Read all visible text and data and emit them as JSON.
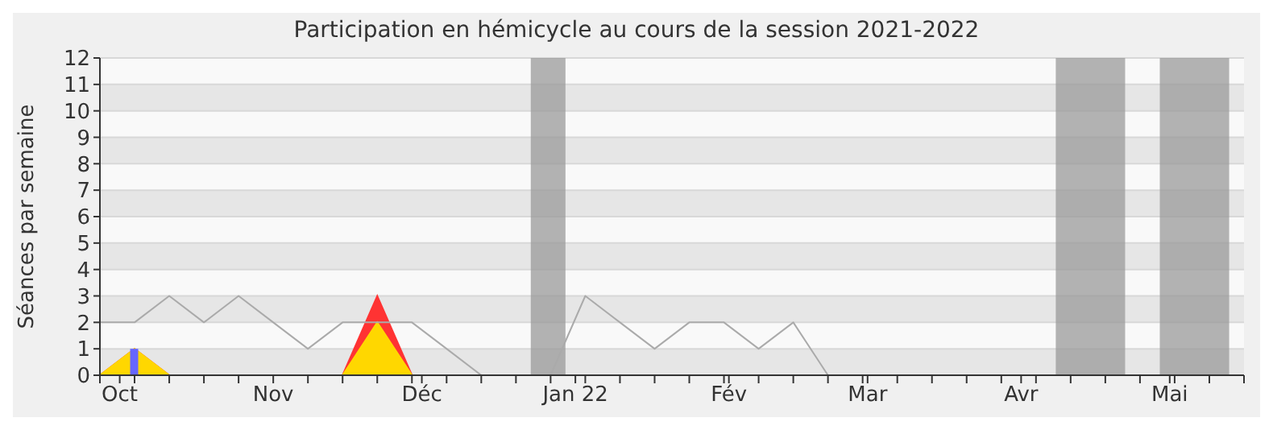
{
  "chart_data": {
    "type": "area",
    "title": "Participation en hémicycle au cours de la session 2021-2022",
    "ylabel": "Séances par semaine",
    "x": [
      "2021-09-27",
      "2021-10-04",
      "2021-10-11",
      "2021-10-18",
      "2021-10-25",
      "2021-11-01",
      "2021-11-08",
      "2021-11-15",
      "2021-11-22",
      "2021-11-29",
      "2021-12-06",
      "2021-12-13",
      "2021-12-20",
      "2021-12-27",
      "2022-01-03",
      "2022-01-10",
      "2022-01-17",
      "2022-01-24",
      "2022-01-31",
      "2022-02-07",
      "2022-02-14",
      "2022-02-21",
      "2022-02-28",
      "2022-03-07",
      "2022-03-14",
      "2022-03-21",
      "2022-03-28",
      "2022-04-04",
      "2022-04-11",
      "2022-04-18",
      "2022-04-25",
      "2022-05-02",
      "2022-05-09",
      "2022-05-16"
    ],
    "series": [
      {
        "type": "line",
        "color": "#aaaaaa",
        "values": [
          2,
          2,
          3,
          2,
          3,
          2,
          1,
          2,
          2,
          2,
          1,
          0,
          0,
          0,
          3,
          2,
          1,
          2,
          2,
          1,
          2,
          0,
          null,
          null,
          null,
          null,
          null,
          null,
          null,
          null,
          null,
          null,
          null,
          null
        ]
      },
      {
        "color": "#ff3333",
        "values": [
          0,
          1,
          0,
          0,
          0,
          0,
          0,
          0,
          3,
          0,
          0,
          0,
          0,
          0,
          0,
          0,
          0,
          0,
          0,
          0,
          0,
          0,
          0,
          0,
          0,
          0,
          0,
          0,
          0,
          0,
          0,
          0,
          0,
          0
        ]
      },
      {
        "color": "#ffd700",
        "values": [
          0,
          1,
          0,
          0,
          0,
          0,
          0,
          0,
          2,
          0,
          0,
          0,
          0,
          0,
          0,
          0,
          0,
          0,
          0,
          0,
          0,
          0,
          0,
          0,
          0,
          0,
          0,
          0,
          0,
          0,
          0,
          0,
          0,
          0
        ]
      },
      {
        "type": "bar",
        "color": "#6666ff",
        "values": [
          null,
          1,
          null,
          null,
          null,
          null,
          null,
          null,
          null,
          null,
          null,
          null,
          null,
          null,
          null,
          null,
          null,
          null,
          null,
          null,
          null,
          null,
          null,
          null,
          null,
          null,
          null,
          null,
          null,
          null,
          null,
          null,
          null,
          null
        ]
      }
    ],
    "xlim": [
      "2021-09-27",
      "2022-05-16"
    ],
    "xticks": [
      {
        "value": "2021-09-27",
        "label": null
      },
      {
        "value": "2021-10-01",
        "label": "Oct"
      },
      {
        "value": "2021-10-04",
        "label": null
      },
      {
        "value": "2021-10-11",
        "label": null
      },
      {
        "value": "2021-10-18",
        "label": null
      },
      {
        "value": "2021-10-25",
        "label": null
      },
      {
        "value": "2021-11-01",
        "label": "Nov"
      },
      {
        "value": "2021-11-08",
        "label": null
      },
      {
        "value": "2021-11-15",
        "label": null
      },
      {
        "value": "2021-11-22",
        "label": null
      },
      {
        "value": "2021-11-29",
        "label": null
      },
      {
        "value": "2021-12-06",
        "label": null
      },
      {
        "value": "2021-12-01",
        "label": "Déc"
      },
      {
        "value": "2021-12-13",
        "label": null
      },
      {
        "value": "2021-12-20",
        "label": null
      },
      {
        "value": "2021-12-27",
        "label": null
      },
      {
        "value": "2022-01-03",
        "label": null
      },
      {
        "value": "2022-01-01",
        "label": "Jan 22"
      },
      {
        "value": "2022-01-10",
        "label": null
      },
      {
        "value": "2022-01-17",
        "label": null
      },
      {
        "value": "2022-01-24",
        "label": null
      },
      {
        "value": "2022-01-31",
        "label": null
      },
      {
        "value": "2022-02-01",
        "label": "Fév"
      },
      {
        "value": "2022-02-07",
        "label": null
      },
      {
        "value": "2022-02-14",
        "label": null
      },
      {
        "value": "2022-02-21",
        "label": null
      },
      {
        "value": "2022-02-28",
        "label": null
      },
      {
        "value": "2022-03-01",
        "label": "Mar"
      },
      {
        "value": "2022-03-07",
        "label": null
      },
      {
        "value": "2022-03-14",
        "label": null
      },
      {
        "value": "2022-03-21",
        "label": null
      },
      {
        "value": "2022-03-28",
        "label": null
      },
      {
        "value": "2022-04-01",
        "label": "Avr"
      },
      {
        "value": "2022-04-04",
        "label": null
      },
      {
        "value": "2022-04-11",
        "label": null
      },
      {
        "value": "2022-04-18",
        "label": null
      },
      {
        "value": "2022-04-25",
        "label": null
      },
      {
        "value": "2022-05-01",
        "label": "Mai"
      },
      {
        "value": "2022-05-02",
        "label": null
      },
      {
        "value": "2022-05-09",
        "label": null
      },
      {
        "value": "2022-05-16",
        "label": null
      }
    ],
    "ylim": [
      0,
      12
    ],
    "yticks": [
      0,
      1,
      2,
      3,
      4,
      5,
      6,
      7,
      8,
      9,
      10,
      11,
      12
    ],
    "bands": [
      {
        "axis": "x",
        "from": "2021-12-23",
        "to": "2021-12-30",
        "color": "#999999"
      },
      {
        "axis": "x",
        "from": "2022-04-08",
        "to": "2022-04-22",
        "color": "#999999"
      },
      {
        "axis": "x",
        "from": "2022-04-29",
        "to": "2022-05-13",
        "color": "#999999"
      }
    ],
    "grid": "y",
    "legend": false
  }
}
